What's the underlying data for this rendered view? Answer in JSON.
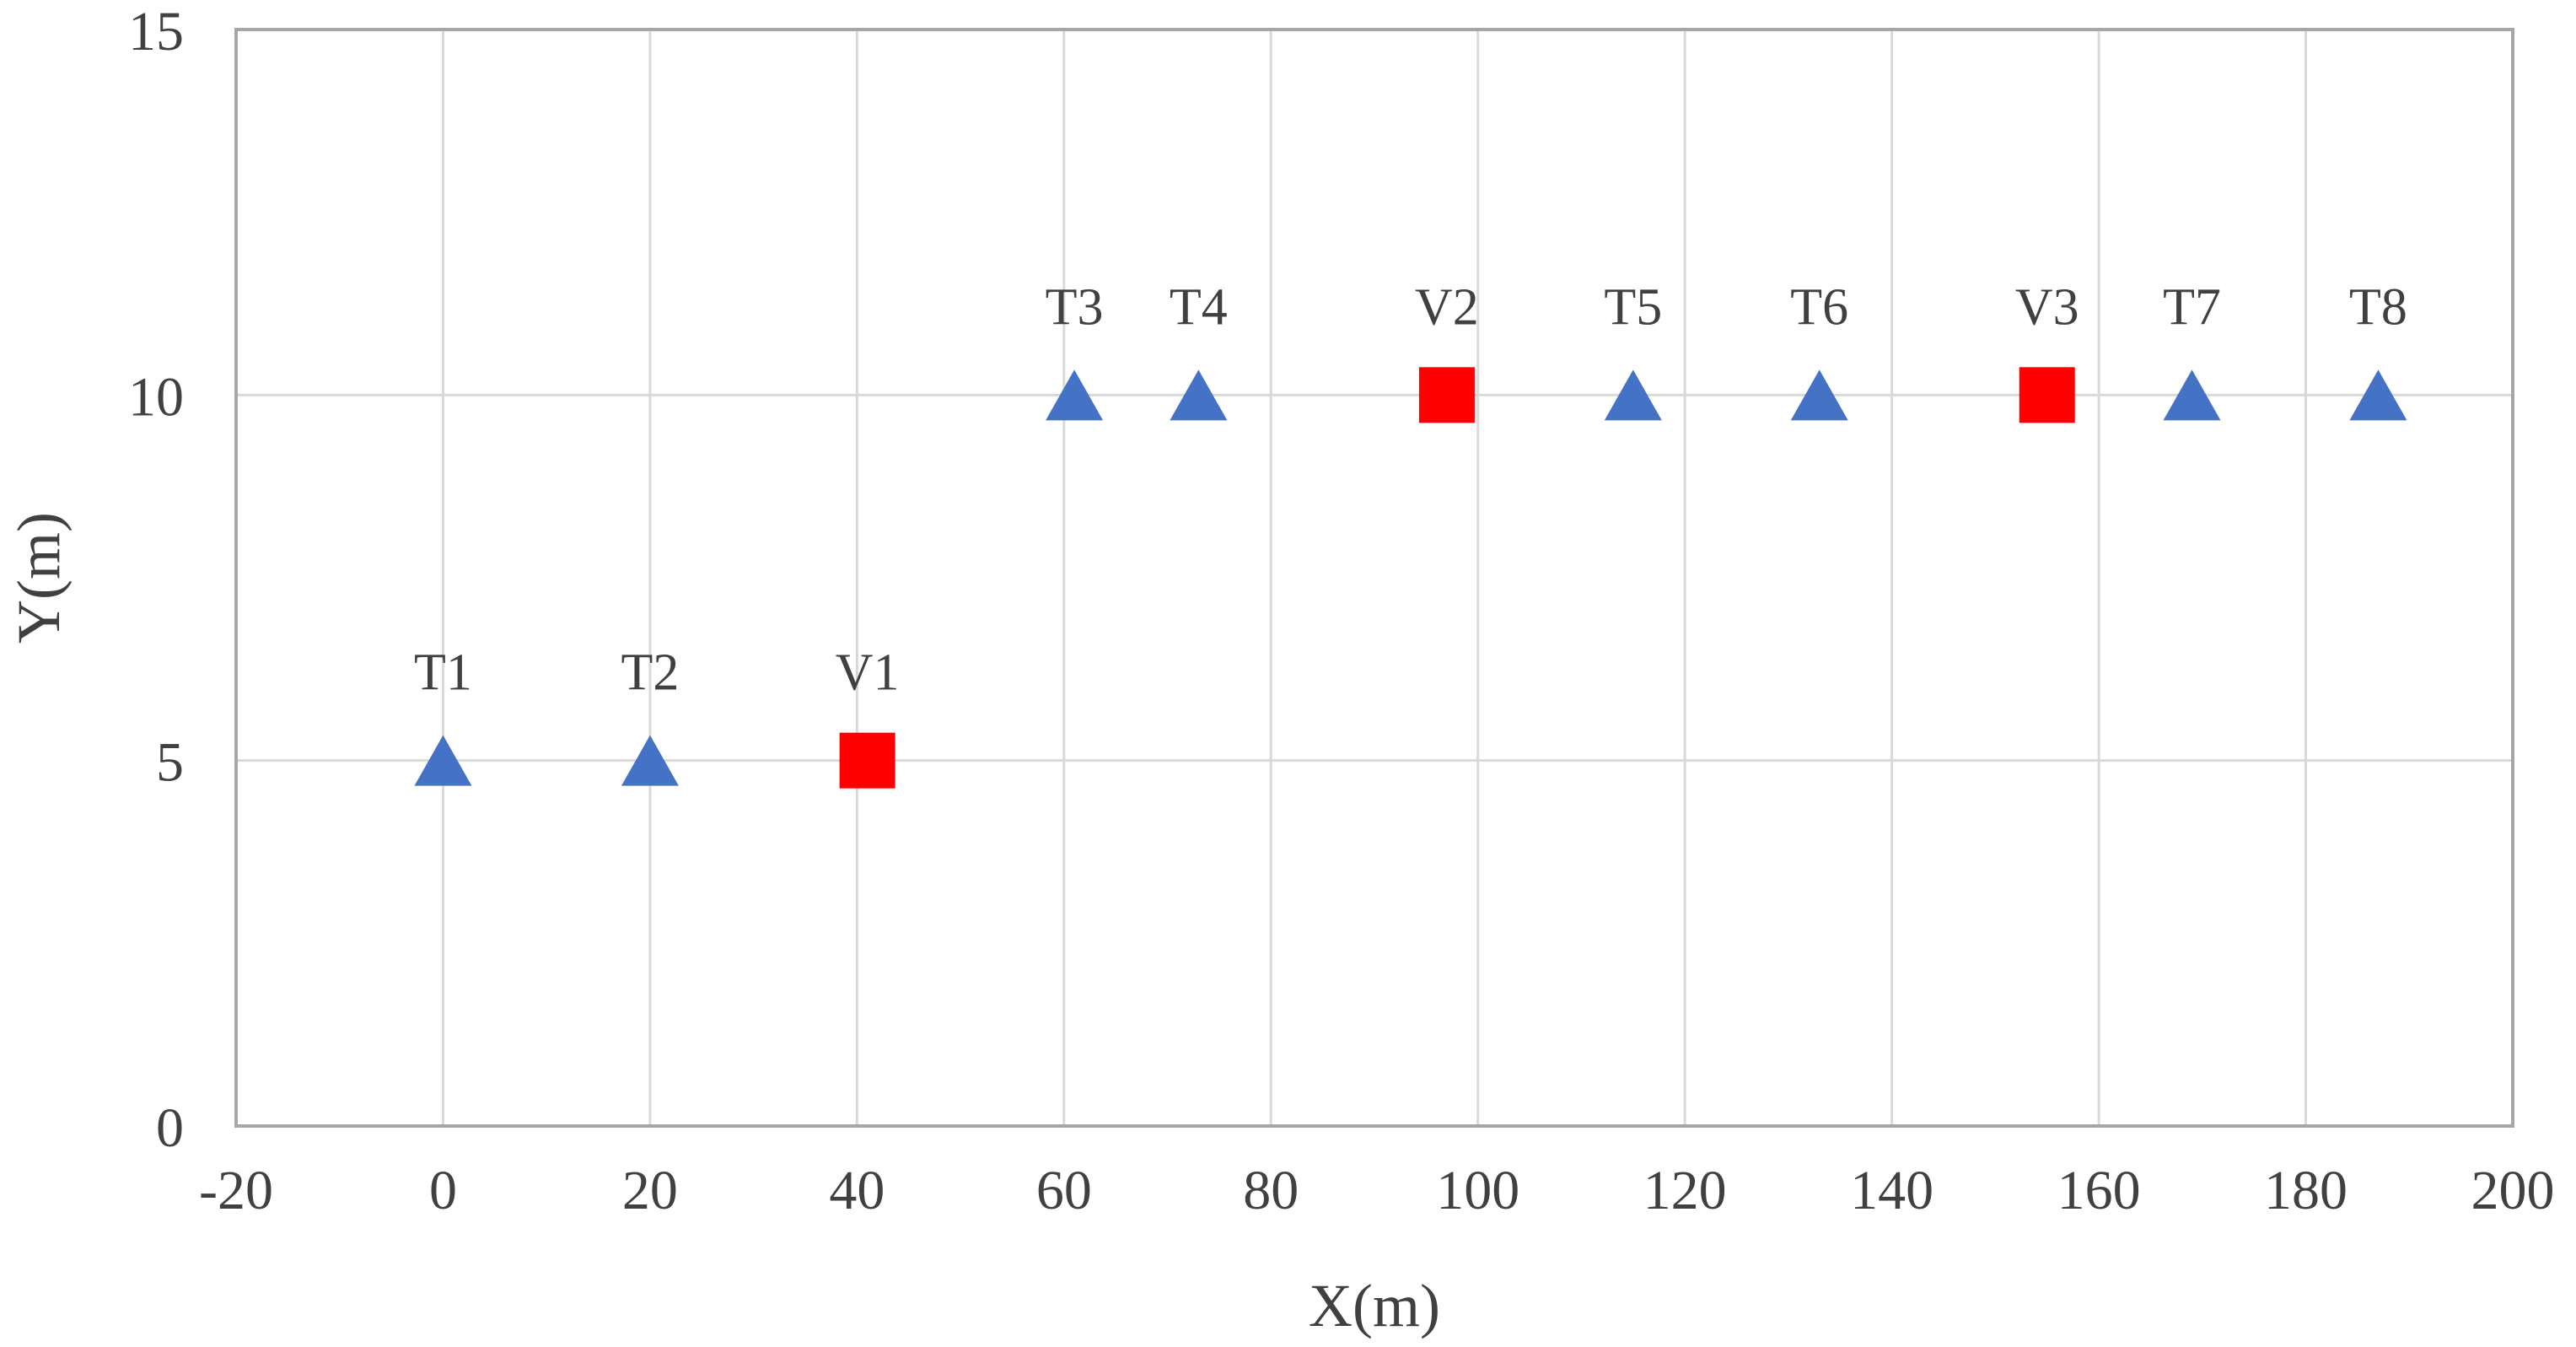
{
  "chart_data": {
    "type": "scatter",
    "title": "",
    "xlabel": "X(m)",
    "ylabel": "Y(m)",
    "xlim": [
      -20,
      200
    ],
    "ylim": [
      0,
      15
    ],
    "xticks": [
      -20,
      0,
      20,
      40,
      60,
      80,
      100,
      120,
      140,
      160,
      180,
      200
    ],
    "yticks": [
      0,
      5,
      10,
      15
    ],
    "xtick_labels": [
      "-20",
      "0",
      "20",
      "40",
      "60",
      "80",
      "100",
      "120",
      "140",
      "160",
      "180",
      "200"
    ],
    "ytick_labels": [
      "0",
      "5",
      "10",
      "15"
    ],
    "grid": true,
    "legend": "none",
    "series": [
      {
        "name": "T",
        "marker": "triangle",
        "color": "#4472C4",
        "points": [
          {
            "label": "T1",
            "x": 0,
            "y": 5
          },
          {
            "label": "T2",
            "x": 20,
            "y": 5
          },
          {
            "label": "T3",
            "x": 61,
            "y": 10
          },
          {
            "label": "T4",
            "x": 73,
            "y": 10
          },
          {
            "label": "T5",
            "x": 115,
            "y": 10
          },
          {
            "label": "T6",
            "x": 133,
            "y": 10
          },
          {
            "label": "T7",
            "x": 169,
            "y": 10
          },
          {
            "label": "T8",
            "x": 187,
            "y": 10
          }
        ]
      },
      {
        "name": "V",
        "marker": "square",
        "color": "#FF0000",
        "points": [
          {
            "label": "V1",
            "x": 41,
            "y": 5
          },
          {
            "label": "V2",
            "x": 97,
            "y": 10
          },
          {
            "label": "V3",
            "x": 155,
            "y": 10
          }
        ]
      }
    ]
  },
  "colors": {
    "grid": "#D9D9D9",
    "axis": "#A6A6A6",
    "text": "#404040"
  }
}
